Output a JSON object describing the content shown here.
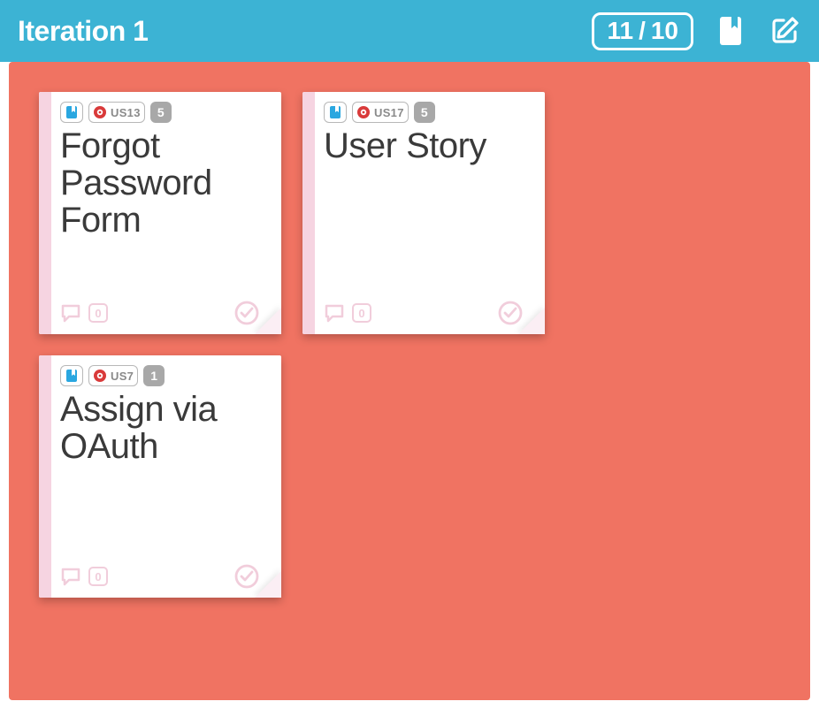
{
  "colors": {
    "header_bg": "#3cb3d4",
    "board_bg": "#f07362",
    "card_accent": "#f6d4e1",
    "card_fold_light": "#fbeef4",
    "chip_border": "#b8b8b8",
    "id_text": "#8a8a8a",
    "points_badge_bg": "#a8a8a8",
    "title_text": "#3a3a3a",
    "footer_tint": "#f1cddb",
    "ticket_blue": "#2aa7e0",
    "story_red": "#d93a3a"
  },
  "header": {
    "title": "Iteration 1",
    "points_used": "11",
    "points_sep": "/",
    "points_total": "10"
  },
  "cards": [
    {
      "id": "US13",
      "points": "5",
      "title": "Forgot Password Form",
      "comments": "0"
    },
    {
      "id": "US17",
      "points": "5",
      "title": "User Story",
      "comments": "0"
    },
    {
      "id": "US7",
      "points": "1",
      "title": "Assign via OAuth",
      "comments": "0"
    }
  ]
}
